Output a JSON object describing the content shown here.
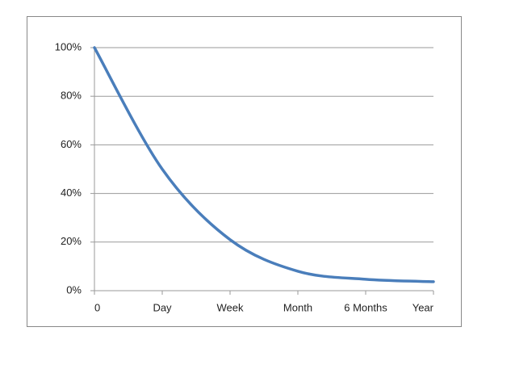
{
  "chart_data": {
    "type": "line",
    "categories": [
      "0",
      "Day",
      "Week",
      "Month",
      "6 Months",
      "Year"
    ],
    "series": [
      {
        "color": "#4a7ebb",
        "values": [
          100,
          50,
          21,
          8,
          4.7,
          3.7
        ]
      }
    ],
    "ylim": [
      0,
      100
    ],
    "yticks": [
      {
        "value": 0,
        "label": "0%"
      },
      {
        "value": 20,
        "label": "20%"
      },
      {
        "value": 40,
        "label": "40%"
      },
      {
        "value": 60,
        "label": "60%"
      },
      {
        "value": 80,
        "label": "80%"
      },
      {
        "value": 100,
        "label": "100%"
      }
    ],
    "grid": true,
    "smooth": true
  }
}
